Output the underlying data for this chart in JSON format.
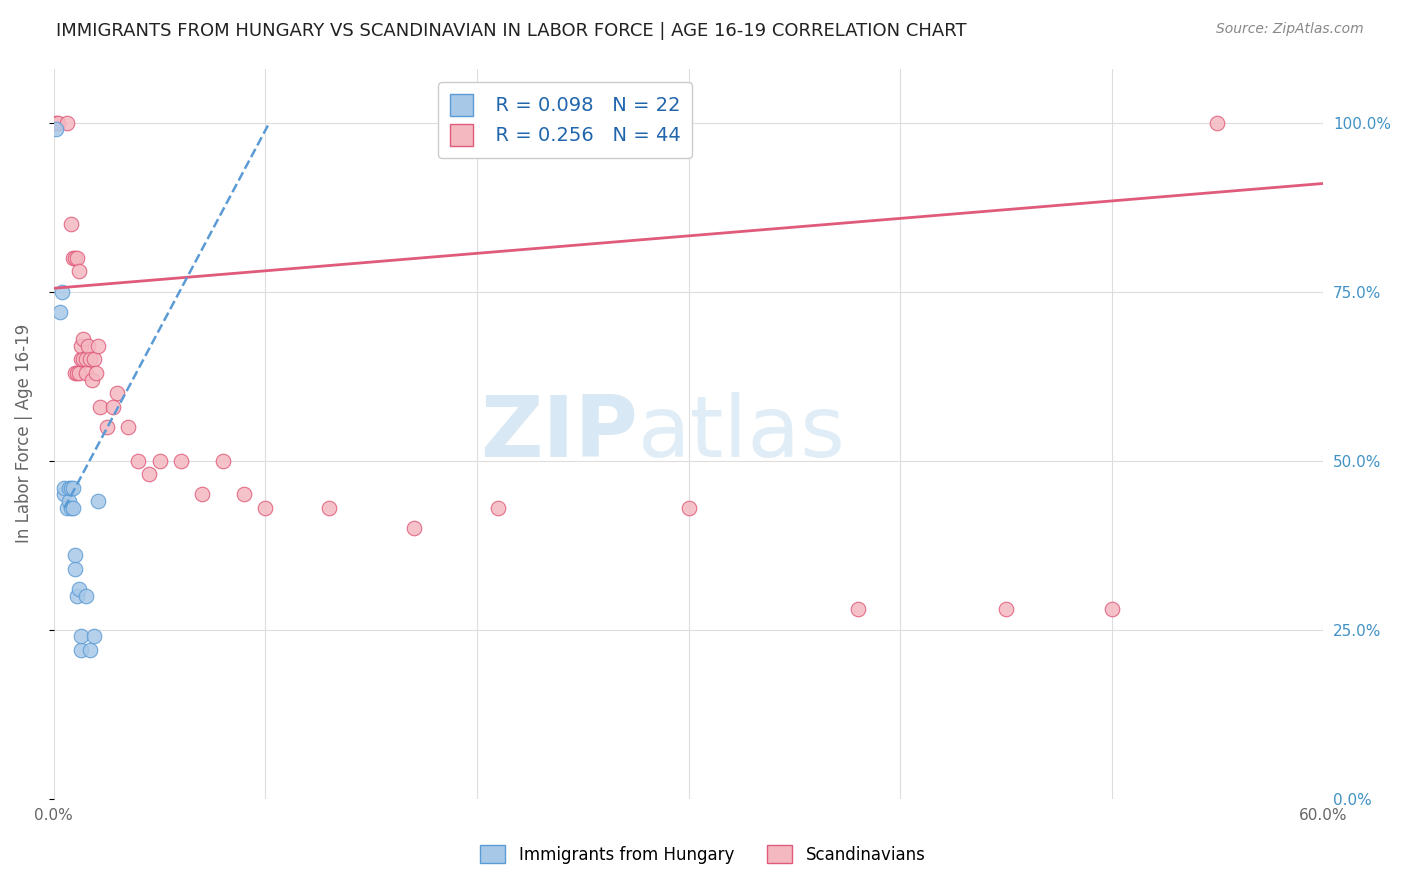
{
  "title": "IMMIGRANTS FROM HUNGARY VS SCANDINAVIAN IN LABOR FORCE | AGE 16-19 CORRELATION CHART",
  "source": "Source: ZipAtlas.com",
  "ylabel": "In Labor Force | Age 16-19",
  "xlim": [
    0.0,
    0.6
  ],
  "ylim": [
    0.0,
    1.08
  ],
  "xticks": [
    0.0,
    0.1,
    0.2,
    0.3,
    0.4,
    0.5,
    0.6
  ],
  "xtick_labels": [
    "0.0%",
    "",
    "",
    "",
    "",
    "",
    "60.0%"
  ],
  "ytick_vals": [
    0.0,
    0.25,
    0.5,
    0.75,
    1.0
  ],
  "ytick_labels_right": [
    "0.0%",
    "25.0%",
    "50.0%",
    "75.0%",
    "100.0%"
  ],
  "hungary_color": "#a8c8e8",
  "hungary_edge": "#5b9bd5",
  "scand_color": "#f4b8c1",
  "scand_edge": "#e05a7a",
  "hungary_R": 0.098,
  "hungary_N": 22,
  "scand_R": 0.256,
  "scand_N": 44,
  "legend_R_color": "#2166ac",
  "watermark_zip": "ZIP",
  "watermark_atlas": "atlas",
  "hungary_x": [
    0.001,
    0.003,
    0.004,
    0.005,
    0.005,
    0.006,
    0.007,
    0.007,
    0.008,
    0.008,
    0.009,
    0.009,
    0.01,
    0.01,
    0.011,
    0.012,
    0.013,
    0.013,
    0.015,
    0.017,
    0.019,
    0.021
  ],
  "hungary_y": [
    0.99,
    0.72,
    0.75,
    0.45,
    0.46,
    0.43,
    0.44,
    0.46,
    0.43,
    0.46,
    0.43,
    0.46,
    0.34,
    0.36,
    0.3,
    0.31,
    0.22,
    0.24,
    0.3,
    0.22,
    0.24,
    0.44
  ],
  "scand_x": [
    0.001,
    0.002,
    0.006,
    0.008,
    0.009,
    0.01,
    0.01,
    0.011,
    0.011,
    0.012,
    0.012,
    0.013,
    0.013,
    0.014,
    0.014,
    0.015,
    0.015,
    0.016,
    0.017,
    0.018,
    0.019,
    0.02,
    0.021,
    0.022,
    0.025,
    0.028,
    0.03,
    0.035,
    0.04,
    0.045,
    0.05,
    0.06,
    0.07,
    0.08,
    0.09,
    0.1,
    0.13,
    0.17,
    0.21,
    0.3,
    0.38,
    0.45,
    0.5,
    0.55
  ],
  "scand_y": [
    1.0,
    1.0,
    1.0,
    0.85,
    0.8,
    0.8,
    0.63,
    0.8,
    0.63,
    0.78,
    0.63,
    0.65,
    0.67,
    0.68,
    0.65,
    0.63,
    0.65,
    0.67,
    0.65,
    0.62,
    0.65,
    0.63,
    0.67,
    0.58,
    0.55,
    0.58,
    0.6,
    0.55,
    0.5,
    0.48,
    0.5,
    0.5,
    0.45,
    0.5,
    0.45,
    0.43,
    0.43,
    0.4,
    0.43,
    0.43,
    0.28,
    0.28,
    0.28,
    1.0
  ],
  "scand_line_x0": 0.0,
  "scand_line_y0": 0.755,
  "scand_line_x1": 0.6,
  "scand_line_y1": 0.91,
  "hungary_line_x0": 0.005,
  "hungary_line_y0": 0.43,
  "hungary_line_x1": 0.022,
  "hungary_line_y1": 0.53,
  "bg_color": "#ffffff",
  "grid_color": "#dddddd",
  "tick_label_color_right": "#4292c6"
}
